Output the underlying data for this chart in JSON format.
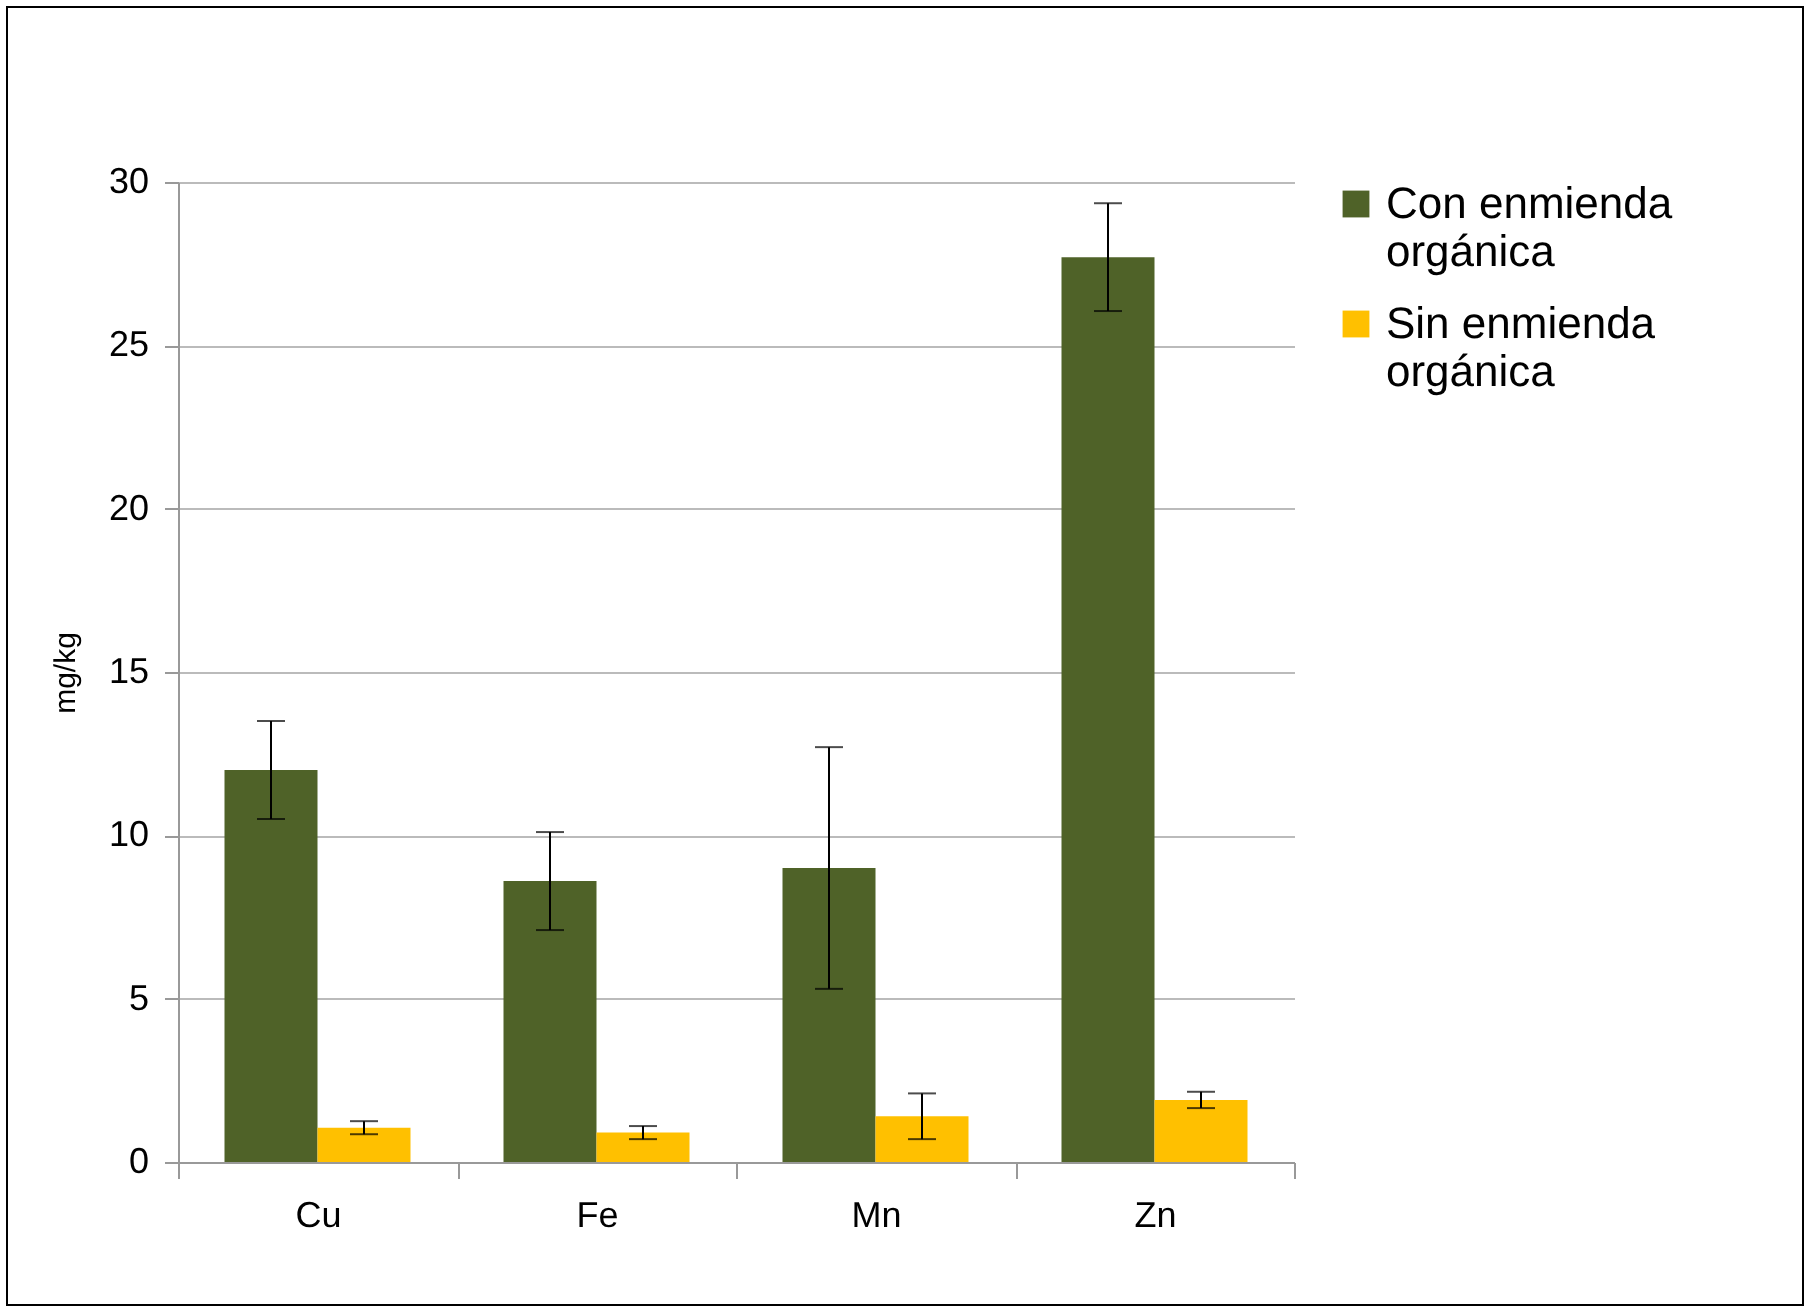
{
  "chart_data": {
    "type": "bar",
    "ylabel": "mg/kg",
    "categories": [
      "Cu",
      "Fe",
      "Mn",
      "Zn"
    ],
    "series": [
      {
        "name": "Con enmienda orgánica",
        "color": "#4f6228",
        "values": [
          12.0,
          8.6,
          9.0,
          27.7
        ],
        "errors": [
          1.5,
          1.5,
          3.7,
          1.65
        ]
      },
      {
        "name": "Sin enmienda orgánica",
        "color": "#ffc000",
        "values": [
          1.05,
          0.9,
          1.4,
          1.9
        ],
        "errors": [
          0.2,
          0.2,
          0.7,
          0.25
        ]
      }
    ],
    "ylim": [
      0,
      30
    ],
    "yticks": [
      0,
      5,
      10,
      15,
      20,
      25,
      30
    ],
    "grid": "y",
    "legend": "right"
  }
}
